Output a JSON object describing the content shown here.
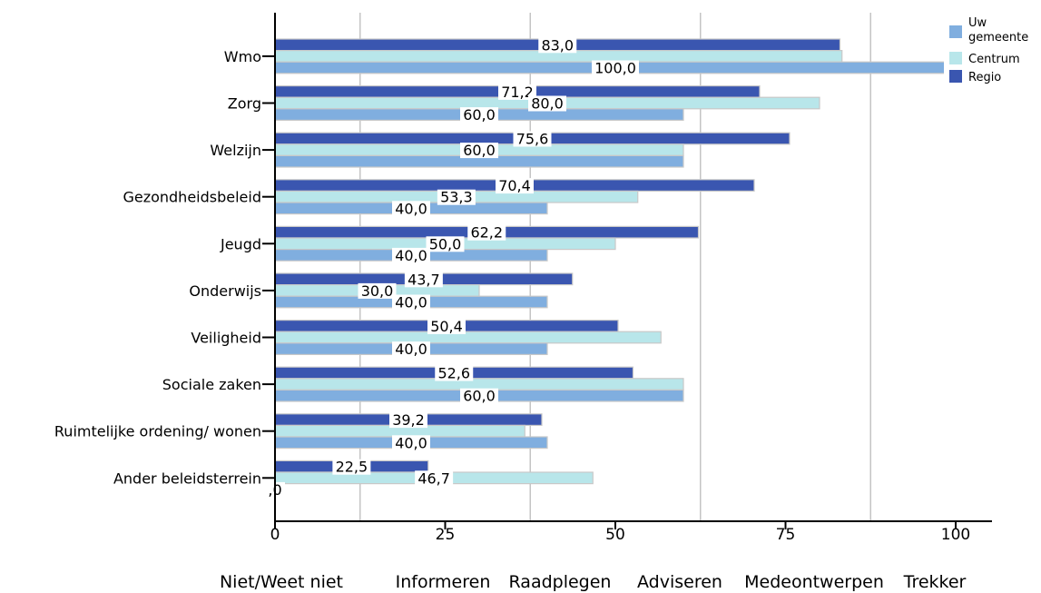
{
  "chart_data": {
    "type": "bar",
    "orientation": "horizontal",
    "categories": [
      "Wmo",
      "Zorg",
      "Welzijn",
      "Gezondheidsbeleid",
      "Jeugd",
      "Onderwijs",
      "Veiligheid",
      "Sociale zaken",
      "Ruimtelijke ordening/ wonen",
      "Ander beleidsterrein"
    ],
    "series": [
      {
        "name": "Regio",
        "color": "#3a56b0",
        "values": [
          83.0,
          71.2,
          75.6,
          70.4,
          62.2,
          43.7,
          50.4,
          52.6,
          39.2,
          22.5
        ],
        "labels": [
          "83,0",
          "71,2",
          "75,6",
          "70,4",
          "62,2",
          "43,7",
          "50,4",
          "52,6",
          "39,2",
          "22,5"
        ]
      },
      {
        "name": "Centrum",
        "color": "#b8e6ea",
        "values": [
          83.3,
          80.0,
          60.0,
          53.3,
          50.0,
          30.0,
          56.7,
          60.0,
          36.7,
          46.7
        ],
        "labels": [
          "",
          "80,0",
          "60,0",
          "53,3",
          "50,0",
          "30,0",
          "",
          "",
          "",
          "46,7"
        ]
      },
      {
        "name": "Uw gemeente",
        "color": "#80aedf",
        "values": [
          100.0,
          60.0,
          60.0,
          40.0,
          40.0,
          40.0,
          40.0,
          60.0,
          40.0,
          0.0
        ],
        "labels": [
          "100,0",
          "60,0",
          "",
          "40,0",
          "40,0",
          "40,0",
          "40,0",
          "60,0",
          "40,0",
          ",0"
        ]
      }
    ],
    "legend": {
      "position": "top-right",
      "entries": [
        "Uw gemeente",
        "Centrum",
        "Regio"
      ]
    },
    "xlim": [
      0,
      105
    ],
    "x_ticks": [
      0,
      25,
      50,
      75,
      100
    ],
    "x_tick_labels": [
      "0",
      "25",
      "50",
      "75",
      "100"
    ],
    "gridlines_at": [
      12.5,
      37.5,
      62.5,
      87.5
    ],
    "bottom_categories": [
      "Niet/Weet niet",
      "Informeren",
      "Raadplegen",
      "Adviseren",
      "Medeontwerpen",
      "Trekker"
    ]
  }
}
